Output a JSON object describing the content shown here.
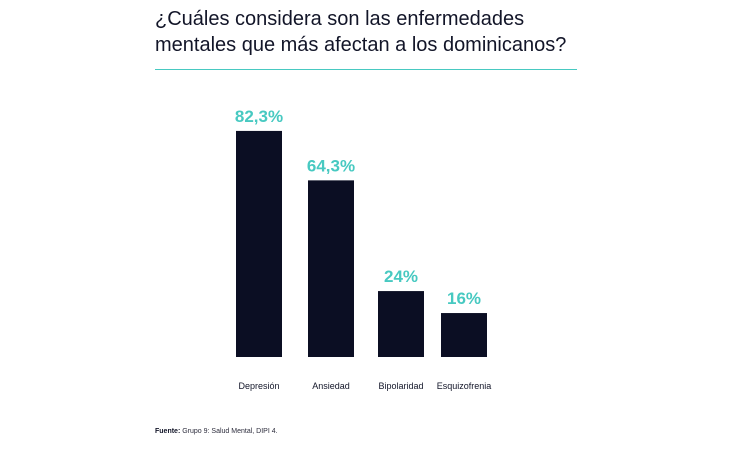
{
  "title_line1": "¿Cuáles considera son las enfermedades",
  "title_line2": "mentales que más afectan a los dominicanos?",
  "source_label": "Fuente:",
  "source_text": " Grupo 9: Salud Mental, DIPI 4.",
  "colors": {
    "bar": "#0b0e23",
    "value_label": "#47c9c1",
    "rule": "#47c9c1",
    "category_label": "#121528"
  },
  "chart_data": {
    "type": "bar",
    "title": "¿Cuáles considera son las enfermedades mentales que más afectan a los dominicanos?",
    "categories": [
      "Depresión",
      "Ansiedad",
      "Bipolaridad",
      "Esquizofrenia"
    ],
    "values": [
      82.3,
      64.3,
      24,
      16
    ],
    "value_labels": [
      "82,3%",
      "64,3%",
      "24%",
      "16%"
    ],
    "xlabel": "",
    "ylabel": "",
    "ylim": [
      0,
      100
    ],
    "grid": false,
    "legend": "none"
  }
}
